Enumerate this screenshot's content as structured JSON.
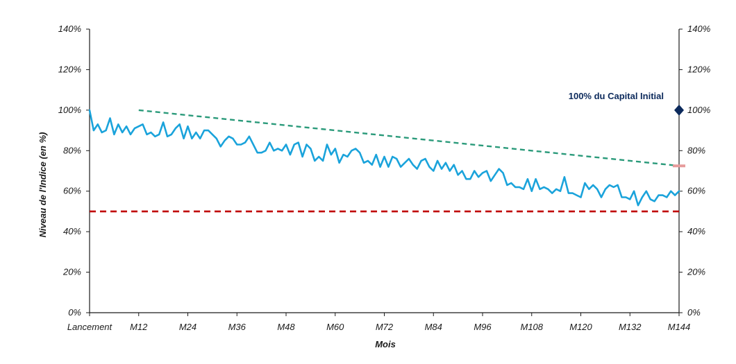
{
  "chart_data": {
    "type": "line",
    "title": "",
    "xlabel": "Mois",
    "ylabel": "Niveau de l'Indice (en %)",
    "ylim": [
      0,
      140
    ],
    "xlim": [
      0,
      144
    ],
    "y_ticks": [
      "0%",
      "20%",
      "40%",
      "60%",
      "80%",
      "100%",
      "120%",
      "140%"
    ],
    "x_tick_values": [
      0,
      12,
      24,
      36,
      48,
      60,
      72,
      84,
      96,
      108,
      120,
      132,
      144
    ],
    "x_tick_labels": [
      "Lancement",
      "M12",
      "M24",
      "M36",
      "M48",
      "M60",
      "M72",
      "M84",
      "M96",
      "M108",
      "M120",
      "M132",
      "M144"
    ],
    "grid": false,
    "series": [
      {
        "key": "index",
        "color": "#1aa3db",
        "style": "solid",
        "x": [
          0,
          1,
          2,
          3,
          4,
          5,
          6,
          7,
          8,
          9,
          10,
          11,
          12,
          13,
          14,
          15,
          16,
          17,
          18,
          19,
          20,
          21,
          22,
          23,
          24,
          25,
          26,
          27,
          28,
          29,
          30,
          31,
          32,
          33,
          34,
          35,
          36,
          37,
          38,
          39,
          40,
          41,
          42,
          43,
          44,
          45,
          46,
          47,
          48,
          49,
          50,
          51,
          52,
          53,
          54,
          55,
          56,
          57,
          58,
          59,
          60,
          61,
          62,
          63,
          64,
          65,
          66,
          67,
          68,
          69,
          70,
          71,
          72,
          73,
          74,
          75,
          76,
          77,
          78,
          79,
          80,
          81,
          82,
          83,
          84,
          85,
          86,
          87,
          88,
          89,
          90,
          91,
          92,
          93,
          94,
          95,
          96,
          97,
          98,
          99,
          100,
          101,
          102,
          103,
          104,
          105,
          106,
          107,
          108,
          109,
          110,
          111,
          112,
          113,
          114,
          115,
          116,
          117,
          118,
          119,
          120,
          121,
          122,
          123,
          124,
          125,
          126,
          127,
          128,
          129,
          130,
          131,
          132,
          133,
          134,
          135,
          136,
          137,
          138,
          139,
          140,
          141,
          142,
          143,
          144
        ],
        "values": [
          100,
          90,
          93,
          89,
          90,
          96,
          88,
          93,
          89,
          92,
          88,
          91,
          92,
          93,
          88,
          89,
          87,
          88,
          94,
          87,
          88,
          91,
          93,
          86,
          92,
          86,
          89,
          86,
          90,
          90,
          88,
          86,
          82,
          85,
          87,
          86,
          83,
          83,
          84,
          87,
          83,
          79,
          79,
          80,
          84,
          80,
          81,
          80,
          83,
          78,
          83,
          84,
          77,
          83,
          81,
          75,
          77,
          75,
          83,
          78,
          81,
          74,
          78,
          77,
          80,
          81,
          79,
          74,
          75,
          73,
          78,
          72,
          77,
          72,
          77,
          76,
          72,
          74,
          76,
          73,
          71,
          75,
          76,
          72,
          70,
          75,
          71,
          74,
          70,
          73,
          68,
          70,
          66,
          66,
          70,
          67,
          69,
          70,
          65,
          68,
          71,
          69,
          63,
          64,
          62,
          62,
          61,
          66,
          60,
          66,
          61,
          62,
          61,
          59,
          61,
          60,
          67,
          59,
          59,
          58,
          57,
          64,
          61,
          63,
          61,
          57,
          61,
          63,
          62,
          63,
          57,
          57,
          56,
          60,
          53,
          57,
          60,
          56,
          55,
          58,
          58,
          57,
          60,
          58,
          60
        ]
      },
      {
        "key": "barrier-capital",
        "color": "#2a9a7a",
        "style": "dashed",
        "x": [
          12,
          144
        ],
        "values": [
          100,
          72.5
        ]
      },
      {
        "key": "barrier-protection",
        "color": "#c00000",
        "style": "dashed",
        "x": [
          0,
          144
        ],
        "values": [
          50,
          50
        ]
      }
    ],
    "annotations": [
      {
        "text": "100% du Capital Initial",
        "x": 144,
        "y": 100,
        "color": "#0c2a5c",
        "marker": "diamond"
      }
    ],
    "end_marker": {
      "x": 144,
      "y": 72.5,
      "color": "#e69b9b"
    }
  }
}
